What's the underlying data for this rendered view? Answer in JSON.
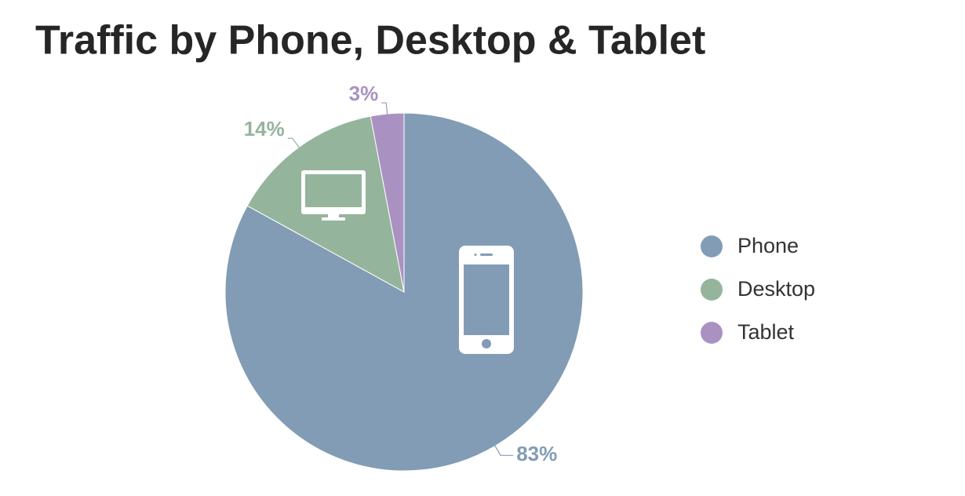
{
  "chart_data": {
    "type": "pie",
    "title": "Traffic by Phone, Desktop & Tablet",
    "categories": [
      "Phone",
      "Desktop",
      "Tablet"
    ],
    "values": [
      83,
      14,
      3
    ],
    "value_labels": [
      "83%",
      "14%",
      "3%"
    ],
    "colors": [
      "#839cb5",
      "#95b49c",
      "#a992c2"
    ]
  }
}
